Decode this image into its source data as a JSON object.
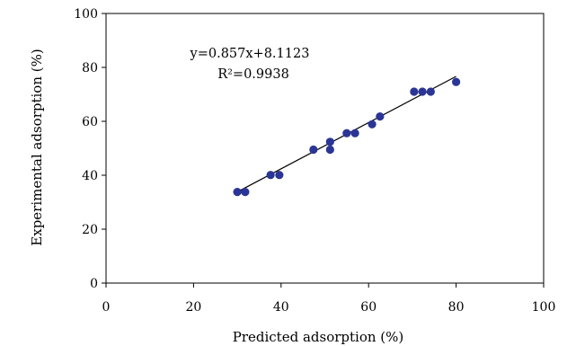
{
  "chart_data": {
    "type": "scatter",
    "xlabel": "Predicted adsorption (%)",
    "ylabel": "Experimental adsorption (%)",
    "xlim": [
      0,
      100
    ],
    "ylim": [
      0,
      100
    ],
    "x_ticks": [
      0,
      20,
      40,
      60,
      80,
      100
    ],
    "y_ticks": [
      0,
      20,
      40,
      60,
      80,
      100
    ],
    "grid": false,
    "legend": "none",
    "annotations": {
      "equation": "y=0.857x+8.1123",
      "r_squared": "R²=0.9938"
    },
    "points": [
      {
        "x": 30.0,
        "y": 33.8
      },
      {
        "x": 31.8,
        "y": 33.8
      },
      {
        "x": 37.6,
        "y": 40.1
      },
      {
        "x": 39.6,
        "y": 40.1
      },
      {
        "x": 47.4,
        "y": 49.5
      },
      {
        "x": 51.2,
        "y": 49.5
      },
      {
        "x": 51.2,
        "y": 52.4
      },
      {
        "x": 55.0,
        "y": 55.6
      },
      {
        "x": 56.9,
        "y": 55.6
      },
      {
        "x": 60.8,
        "y": 58.9
      },
      {
        "x": 62.6,
        "y": 61.8
      },
      {
        "x": 70.4,
        "y": 71.0
      },
      {
        "x": 72.3,
        "y": 71.0
      },
      {
        "x": 74.2,
        "y": 71.0
      },
      {
        "x": 80.0,
        "y": 74.6
      }
    ],
    "trendline": {
      "slope": 0.857,
      "intercept": 8.1123,
      "x_range": [
        30,
        80
      ]
    },
    "colors": {
      "marker": "#2b3595",
      "line": "#000000",
      "axis": "#000000"
    }
  }
}
